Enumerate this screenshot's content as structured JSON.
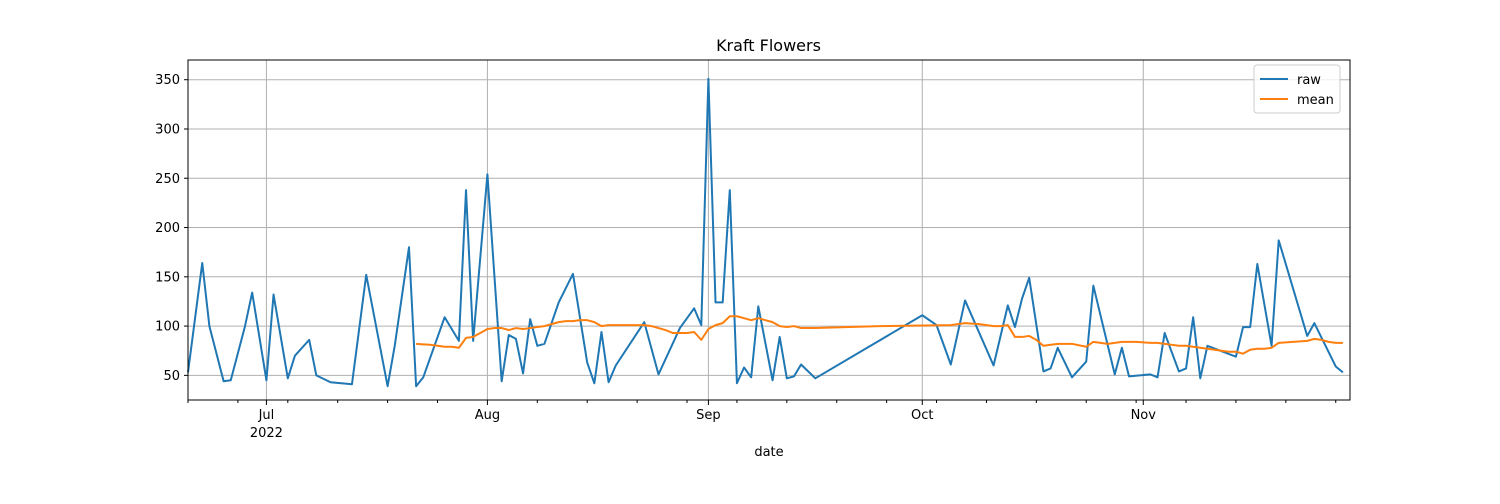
{
  "chart_data": {
    "type": "line",
    "title": "Kraft Flowers",
    "xlabel": "date",
    "ylabel": "",
    "xlim": [
      "2022-06-20",
      "2022-11-30"
    ],
    "ylim": [
      25,
      370
    ],
    "grid": true,
    "legend_position": "top-right",
    "yticks": [
      50,
      100,
      150,
      200,
      250,
      300,
      350
    ],
    "ytick_labels": [
      "50",
      "100",
      "150",
      "200",
      "250",
      "300",
      "350"
    ],
    "xticks_major": [
      {
        "date": "2022-07-01",
        "label": "Jul",
        "sublabel": "2022"
      },
      {
        "date": "2022-08-01",
        "label": "Aug",
        "sublabel": ""
      },
      {
        "date": "2022-09-01",
        "label": "Sep",
        "sublabel": ""
      },
      {
        "date": "2022-10-01",
        "label": "Oct",
        "sublabel": ""
      },
      {
        "date": "2022-11-01",
        "label": "Nov",
        "sublabel": ""
      }
    ],
    "xticks_minor": [
      "2022-06-20",
      "2022-06-27",
      "2022-07-04",
      "2022-07-11",
      "2022-07-18",
      "2022-07-25",
      "2022-08-08",
      "2022-08-15",
      "2022-08-22",
      "2022-08-29",
      "2022-09-05",
      "2022-09-12",
      "2022-09-19",
      "2022-09-26",
      "2022-10-03",
      "2022-10-10",
      "2022-10-17",
      "2022-10-24",
      "2022-10-31",
      "2022-11-07",
      "2022-11-14",
      "2022-11-21",
      "2022-11-28"
    ],
    "series": [
      {
        "name": "raw",
        "color": "#1f77b4",
        "points": [
          [
            "2022-06-20",
            53
          ],
          [
            "2022-06-22",
            164
          ],
          [
            "2022-06-23",
            100
          ],
          [
            "2022-06-25",
            44
          ],
          [
            "2022-06-26",
            45
          ],
          [
            "2022-06-28",
            100
          ],
          [
            "2022-06-29",
            134
          ],
          [
            "2022-07-01",
            45
          ],
          [
            "2022-07-02",
            132
          ],
          [
            "2022-07-04",
            47
          ],
          [
            "2022-07-05",
            70
          ],
          [
            "2022-07-07",
            86
          ],
          [
            "2022-07-08",
            50
          ],
          [
            "2022-07-10",
            43
          ],
          [
            "2022-07-13",
            41
          ],
          [
            "2022-07-15",
            152
          ],
          [
            "2022-07-18",
            39
          ],
          [
            "2022-07-19",
            80
          ],
          [
            "2022-07-21",
            180
          ],
          [
            "2022-07-22",
            39
          ],
          [
            "2022-07-23",
            48
          ],
          [
            "2022-07-26",
            109
          ],
          [
            "2022-07-28",
            85
          ],
          [
            "2022-07-29",
            238
          ],
          [
            "2022-07-30",
            85
          ],
          [
            "2022-08-01",
            254
          ],
          [
            "2022-08-03",
            44
          ],
          [
            "2022-08-04",
            91
          ],
          [
            "2022-08-05",
            87
          ],
          [
            "2022-08-06",
            52
          ],
          [
            "2022-08-07",
            107
          ],
          [
            "2022-08-08",
            80
          ],
          [
            "2022-08-09",
            82
          ],
          [
            "2022-08-11",
            124
          ],
          [
            "2022-08-13",
            153
          ],
          [
            "2022-08-15",
            63
          ],
          [
            "2022-08-16",
            42
          ],
          [
            "2022-08-17",
            94
          ],
          [
            "2022-08-18",
            43
          ],
          [
            "2022-08-19",
            60
          ],
          [
            "2022-08-23",
            104
          ],
          [
            "2022-08-25",
            51
          ],
          [
            "2022-08-28",
            98
          ],
          [
            "2022-08-30",
            118
          ],
          [
            "2022-08-31",
            101
          ],
          [
            "2022-09-01",
            351
          ],
          [
            "2022-09-02",
            124
          ],
          [
            "2022-09-03",
            124
          ],
          [
            "2022-09-04",
            238
          ],
          [
            "2022-09-05",
            42
          ],
          [
            "2022-09-06",
            58
          ],
          [
            "2022-09-07",
            48
          ],
          [
            "2022-09-08",
            120
          ],
          [
            "2022-09-10",
            45
          ],
          [
            "2022-09-11",
            89
          ],
          [
            "2022-09-12",
            47
          ],
          [
            "2022-09-13",
            49
          ],
          [
            "2022-09-14",
            61
          ],
          [
            "2022-09-16",
            47
          ],
          [
            "2022-10-01",
            111
          ],
          [
            "2022-10-03",
            101
          ],
          [
            "2022-10-05",
            61
          ],
          [
            "2022-10-07",
            126
          ],
          [
            "2022-10-11",
            60
          ],
          [
            "2022-10-13",
            121
          ],
          [
            "2022-10-14",
            99
          ],
          [
            "2022-10-15",
            128
          ],
          [
            "2022-10-16",
            149
          ],
          [
            "2022-10-18",
            54
          ],
          [
            "2022-10-19",
            57
          ],
          [
            "2022-10-20",
            78
          ],
          [
            "2022-10-22",
            48
          ],
          [
            "2022-10-24",
            64
          ],
          [
            "2022-10-25",
            141
          ],
          [
            "2022-10-28",
            51
          ],
          [
            "2022-10-29",
            78
          ],
          [
            "2022-10-30",
            49
          ],
          [
            "2022-11-02",
            51
          ],
          [
            "2022-11-03",
            48
          ],
          [
            "2022-11-04",
            93
          ],
          [
            "2022-11-06",
            54
          ],
          [
            "2022-11-07",
            57
          ],
          [
            "2022-11-08",
            109
          ],
          [
            "2022-11-09",
            47
          ],
          [
            "2022-11-10",
            80
          ],
          [
            "2022-11-14",
            69
          ],
          [
            "2022-11-15",
            99
          ],
          [
            "2022-11-16",
            99
          ],
          [
            "2022-11-17",
            163
          ],
          [
            "2022-11-19",
            80
          ],
          [
            "2022-11-20",
            187
          ],
          [
            "2022-11-24",
            90
          ],
          [
            "2022-11-25",
            103
          ],
          [
            "2022-11-28",
            59
          ],
          [
            "2022-11-29",
            53
          ]
        ]
      },
      {
        "name": "mean",
        "color": "#ff7f0e",
        "points": [
          [
            "2022-07-22",
            82
          ],
          [
            "2022-07-23",
            81.5
          ],
          [
            "2022-07-24",
            81
          ],
          [
            "2022-07-25",
            80
          ],
          [
            "2022-07-26",
            79
          ],
          [
            "2022-07-27",
            79
          ],
          [
            "2022-07-28",
            78
          ],
          [
            "2022-07-29",
            88
          ],
          [
            "2022-07-30",
            89
          ],
          [
            "2022-07-31",
            93
          ],
          [
            "2022-08-01",
            97
          ],
          [
            "2022-08-02",
            98
          ],
          [
            "2022-08-03",
            98
          ],
          [
            "2022-08-04",
            96
          ],
          [
            "2022-08-05",
            98
          ],
          [
            "2022-08-06",
            97
          ],
          [
            "2022-08-07",
            98
          ],
          [
            "2022-08-08",
            99
          ],
          [
            "2022-08-09",
            100
          ],
          [
            "2022-08-10",
            102
          ],
          [
            "2022-08-11",
            104
          ],
          [
            "2022-08-12",
            105
          ],
          [
            "2022-08-13",
            105
          ],
          [
            "2022-08-14",
            106
          ],
          [
            "2022-08-15",
            106
          ],
          [
            "2022-08-16",
            104
          ],
          [
            "2022-08-17",
            100
          ],
          [
            "2022-08-18",
            101
          ],
          [
            "2022-08-19",
            101
          ],
          [
            "2022-08-20",
            101
          ],
          [
            "2022-08-21",
            101
          ],
          [
            "2022-08-22",
            101
          ],
          [
            "2022-08-23",
            101
          ],
          [
            "2022-08-24",
            100
          ],
          [
            "2022-08-25",
            98
          ],
          [
            "2022-08-26",
            96
          ],
          [
            "2022-08-27",
            93
          ],
          [
            "2022-08-28",
            93
          ],
          [
            "2022-08-29",
            93
          ],
          [
            "2022-08-30",
            94
          ],
          [
            "2022-08-31",
            86
          ],
          [
            "2022-09-01",
            97
          ],
          [
            "2022-09-02",
            101
          ],
          [
            "2022-09-03",
            103
          ],
          [
            "2022-09-04",
            110
          ],
          [
            "2022-09-05",
            110
          ],
          [
            "2022-09-06",
            108
          ],
          [
            "2022-09-07",
            106
          ],
          [
            "2022-09-08",
            108
          ],
          [
            "2022-09-09",
            106
          ],
          [
            "2022-09-10",
            104
          ],
          [
            "2022-09-11",
            100
          ],
          [
            "2022-09-12",
            99
          ],
          [
            "2022-09-13",
            100
          ],
          [
            "2022-09-14",
            98
          ],
          [
            "2022-09-16",
            98
          ],
          [
            "2022-09-25",
            100
          ],
          [
            "2022-10-05",
            101
          ],
          [
            "2022-10-07",
            103
          ],
          [
            "2022-10-09",
            102
          ],
          [
            "2022-10-11",
            100
          ],
          [
            "2022-10-12",
            100
          ],
          [
            "2022-10-13",
            101
          ],
          [
            "2022-10-14",
            89
          ],
          [
            "2022-10-15",
            89
          ],
          [
            "2022-10-16",
            90
          ],
          [
            "2022-10-17",
            86
          ],
          [
            "2022-10-18",
            80
          ],
          [
            "2022-10-20",
            82
          ],
          [
            "2022-10-22",
            82
          ],
          [
            "2022-10-24",
            79
          ],
          [
            "2022-10-25",
            84
          ],
          [
            "2022-10-26",
            83
          ],
          [
            "2022-10-27",
            82
          ],
          [
            "2022-10-28",
            83
          ],
          [
            "2022-10-29",
            84
          ],
          [
            "2022-10-31",
            84
          ],
          [
            "2022-11-02",
            83
          ],
          [
            "2022-11-03",
            83
          ],
          [
            "2022-11-04",
            82
          ],
          [
            "2022-11-05",
            81
          ],
          [
            "2022-11-06",
            80
          ],
          [
            "2022-11-07",
            80
          ],
          [
            "2022-11-08",
            79
          ],
          [
            "2022-11-09",
            78
          ],
          [
            "2022-11-10",
            77
          ],
          [
            "2022-11-11",
            76
          ],
          [
            "2022-11-12",
            75
          ],
          [
            "2022-11-13",
            74
          ],
          [
            "2022-11-14",
            74
          ],
          [
            "2022-11-15",
            72
          ],
          [
            "2022-11-16",
            76
          ],
          [
            "2022-11-17",
            77
          ],
          [
            "2022-11-18",
            77
          ],
          [
            "2022-11-19",
            78
          ],
          [
            "2022-11-20",
            83
          ],
          [
            "2022-11-22",
            84
          ],
          [
            "2022-11-24",
            85
          ],
          [
            "2022-11-25",
            87
          ],
          [
            "2022-11-26",
            86
          ],
          [
            "2022-11-27",
            84
          ],
          [
            "2022-11-28",
            83
          ],
          [
            "2022-11-29",
            83
          ]
        ]
      }
    ]
  }
}
